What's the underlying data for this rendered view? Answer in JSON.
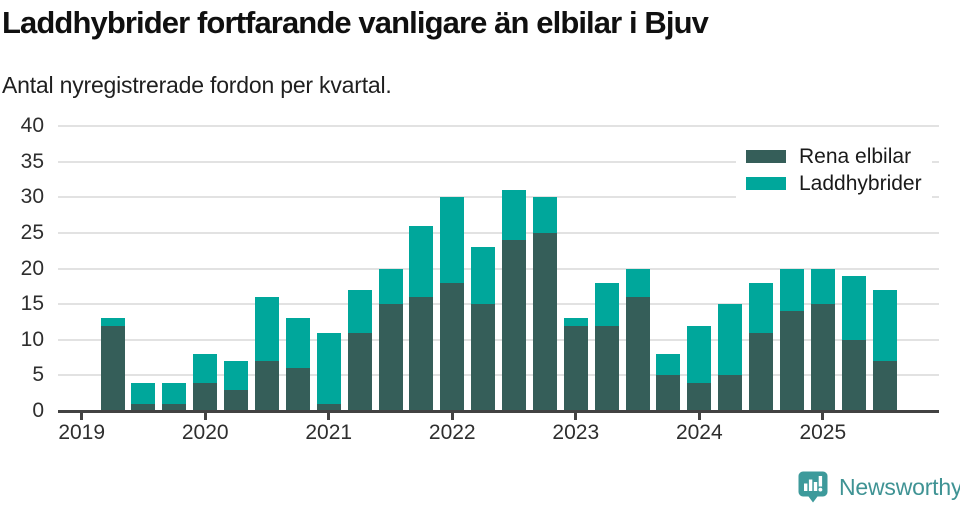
{
  "header": {
    "title": "Laddhybrider fortfarande vanligare än elbilar i Bjuv",
    "subtitle": "Antal nyregistrerade fordon per kvartal."
  },
  "footer": {
    "brand": "Newsworthy",
    "logo_icon": "bar-chart-speech-bubble-icon",
    "brand_color": "#3f9394"
  },
  "chart_data": {
    "type": "bar",
    "stacked": true,
    "title": "Laddhybrider fortfarande vanligare än elbilar i Bjuv",
    "subtitle": "Antal nyregistrerade fordon per kvartal.",
    "categories": [
      "2019 Q1",
      "2019 Q2",
      "2019 Q3",
      "2019 Q4",
      "2020 Q1",
      "2020 Q2",
      "2020 Q3",
      "2020 Q4",
      "2021 Q1",
      "2021 Q2",
      "2021 Q3",
      "2021 Q4",
      "2022 Q1",
      "2022 Q2",
      "2022 Q3",
      "2022 Q4",
      "2023 Q1",
      "2023 Q2",
      "2023 Q3",
      "2023 Q4",
      "2024 Q1",
      "2024 Q2",
      "2024 Q3",
      "2024 Q4",
      "2025 Q1",
      "2025 Q2",
      "2025 Q3"
    ],
    "series": [
      {
        "name": "Rena elbilar",
        "color": "#355e59",
        "values": [
          0,
          12,
          1,
          1,
          4,
          3,
          7,
          6,
          1,
          11,
          15,
          16,
          18,
          15,
          24,
          25,
          12,
          12,
          16,
          5,
          4,
          5,
          11,
          14,
          15,
          10,
          7
        ]
      },
      {
        "name": "Laddhybrider",
        "color": "#00a79b",
        "values": [
          0,
          1,
          3,
          3,
          4,
          4,
          9,
          7,
          10,
          6,
          5,
          10,
          12,
          8,
          7,
          5,
          1,
          6,
          4,
          3,
          8,
          10,
          7,
          6,
          5,
          9,
          10
        ]
      }
    ],
    "totals": [
      0,
      13,
      4,
      4,
      8,
      7,
      16,
      13,
      11,
      17,
      20,
      26,
      30,
      23,
      31,
      30,
      13,
      18,
      20,
      8,
      12,
      15,
      18,
      20,
      20,
      19,
      17
    ],
    "ylim": [
      0,
      40
    ],
    "yticks": [
      0,
      5,
      10,
      15,
      20,
      25,
      30,
      35,
      40
    ],
    "xticks": [
      {
        "label": "2019",
        "index": 0
      },
      {
        "label": "2020",
        "index": 4
      },
      {
        "label": "2021",
        "index": 8
      },
      {
        "label": "2022",
        "index": 12
      },
      {
        "label": "2023",
        "index": 16
      },
      {
        "label": "2024",
        "index": 20
      },
      {
        "label": "2025",
        "index": 24
      }
    ],
    "legend_position": "top-right",
    "grid": "horizontal",
    "grid_color": "#e2e2e2",
    "axis_color": "#424242"
  }
}
